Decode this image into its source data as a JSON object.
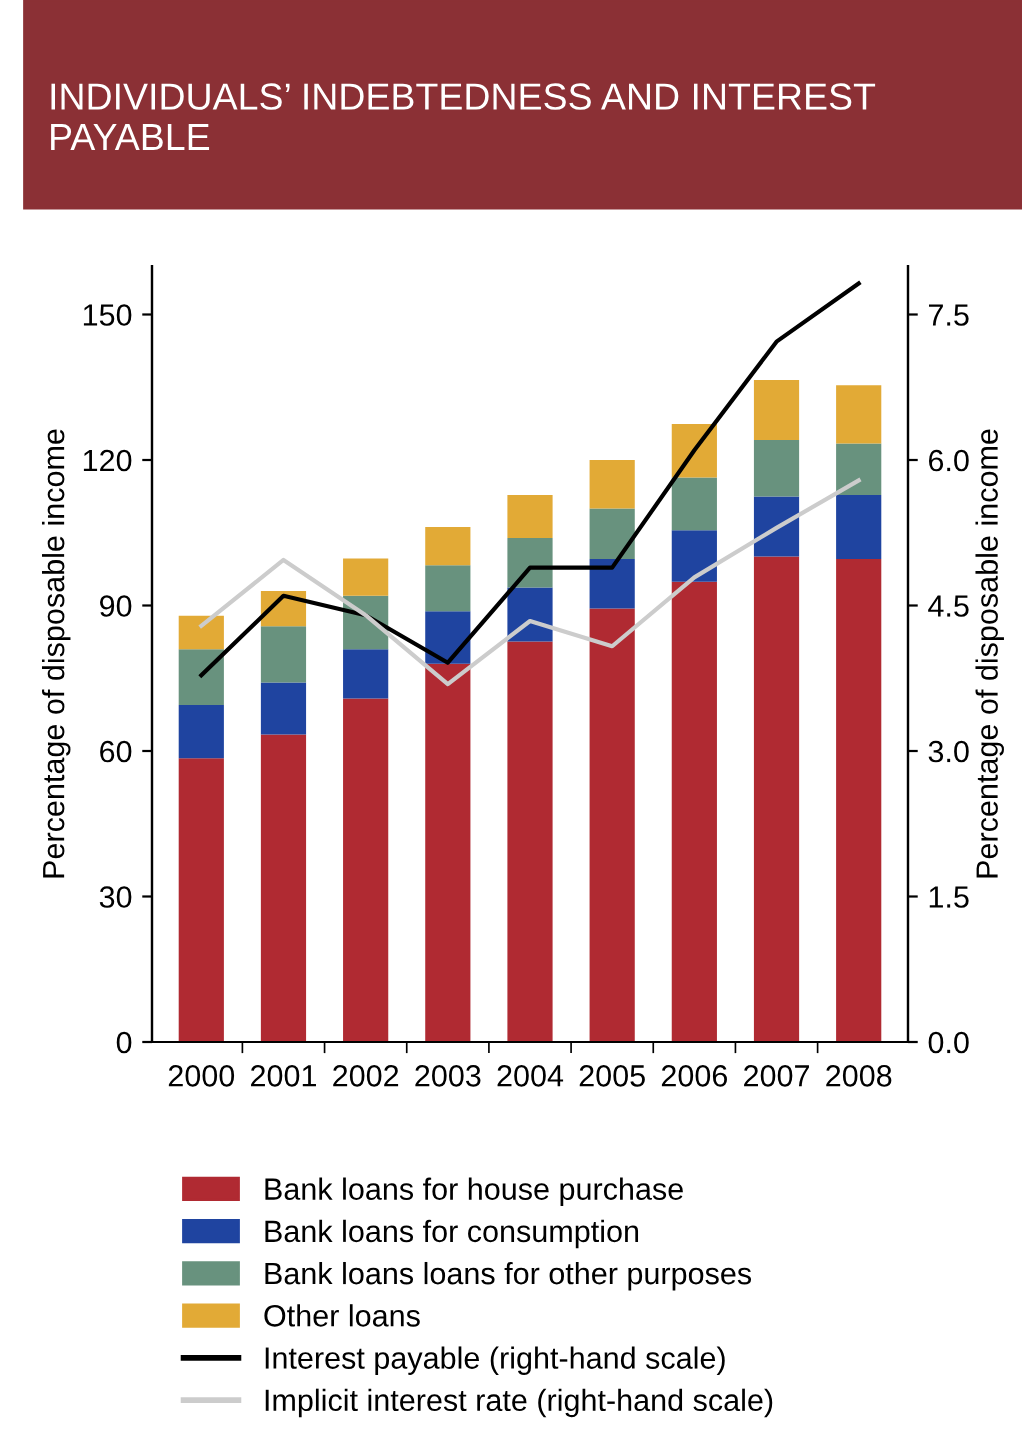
{
  "chart_data": {
    "type": "bar",
    "title": "INDIVIDUALS’ INDEBTEDNESS AND INTEREST PAYABLE",
    "categories": [
      "2000",
      "2001",
      "2002",
      "2003",
      "2004",
      "2005",
      "2006",
      "2007",
      "2008"
    ],
    "stacked": true,
    "series": [
      {
        "name": "Bank loans for house purchase",
        "color": "#b02a32",
        "values": [
          58.5,
          63.4,
          70.8,
          78,
          82.6,
          89.4,
          94.9,
          100.1,
          99.6
        ]
      },
      {
        "name": "Bank loans for consumption",
        "color": "#1f44a0",
        "values": [
          11,
          10.7,
          10.2,
          10.8,
          11.1,
          10.2,
          10.6,
          12.4,
          13.2
        ]
      },
      {
        "name": "Bank loans loans for other purposes",
        "color": "#68927e",
        "values": [
          11.5,
          11.6,
          11,
          9.5,
          10.2,
          10.4,
          10.9,
          11.6,
          10.6
        ]
      },
      {
        "name": "Other loans",
        "color": "#e2aa36",
        "values": [
          6.9,
          7.3,
          7.7,
          7.9,
          8.9,
          10,
          11,
          12.4,
          12
        ]
      },
      {
        "name": "Interest payable (right-hand scale)",
        "type": "line",
        "axis": "y2",
        "color": "#000000",
        "values": [
          3.78,
          4.6,
          4.4,
          3.91,
          4.89,
          4.89,
          6.1,
          7.22,
          7.82
        ]
      },
      {
        "name": "Implicit interest rate (right-hand scale)",
        "type": "line",
        "axis": "y2",
        "color": "#cccccc",
        "values": [
          4.29,
          4.97,
          4.4,
          3.69,
          4.34,
          4.08,
          4.79,
          5.3,
          5.79
        ]
      }
    ],
    "ylabel": "Percentage of disposable income",
    "y2label": "Percentage of disposable income",
    "ylim": [
      0,
      160
    ],
    "yticks": [
      0,
      30,
      60,
      90,
      120,
      150
    ],
    "y2lim": [
      0,
      8
    ],
    "y2ticks": [
      {
        "value": 0,
        "label": "0.0"
      },
      {
        "value": 1.5,
        "label": "1.5"
      },
      {
        "value": 3,
        "label": "3.0"
      },
      {
        "value": 4.5,
        "label": "4.5"
      },
      {
        "value": 6,
        "label": "6.0"
      },
      {
        "value": 7.5,
        "label": "7.5"
      }
    ],
    "legend": "bottom",
    "grid": false
  }
}
